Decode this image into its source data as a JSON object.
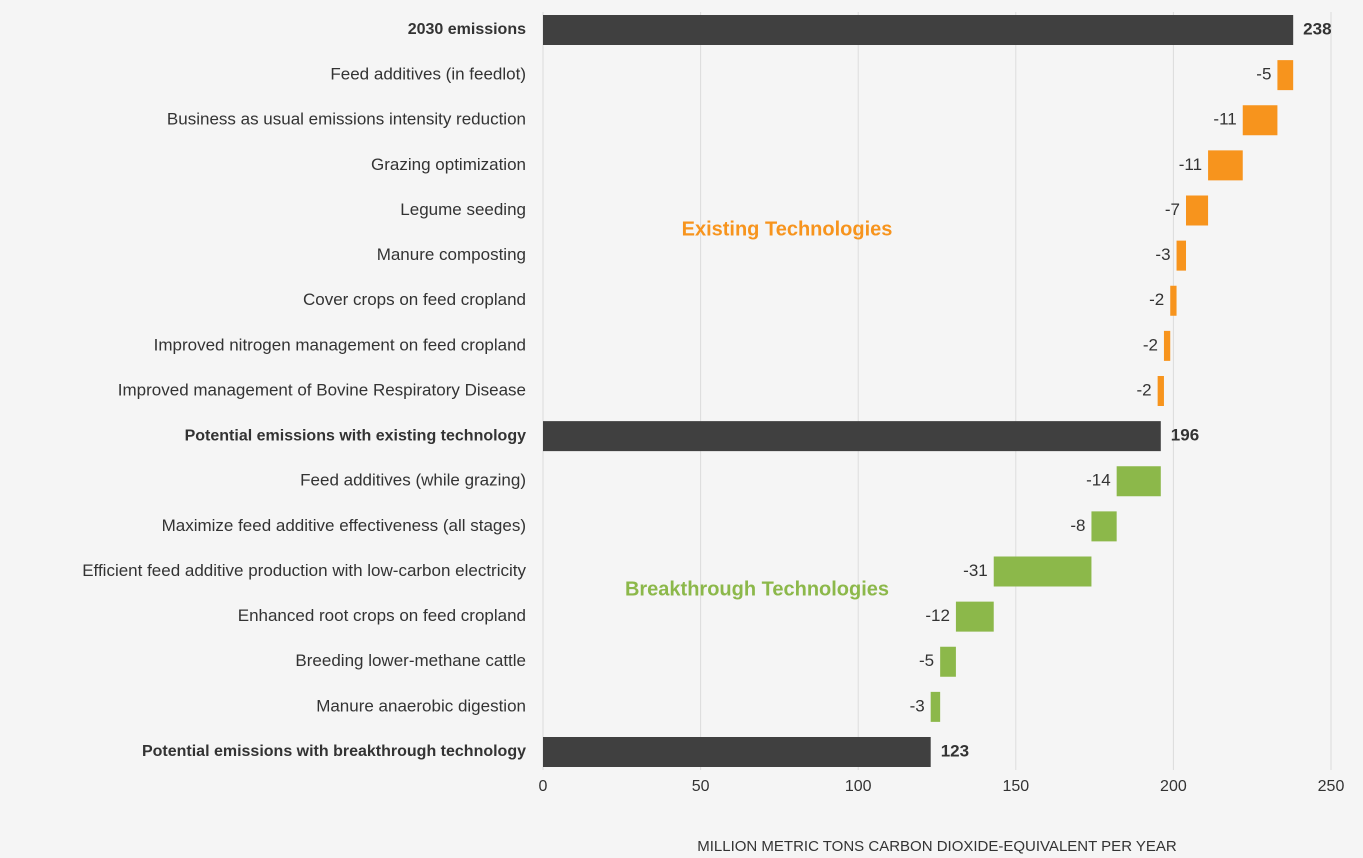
{
  "chart_data": {
    "type": "waterfall",
    "orientation": "horizontal",
    "categories": [
      "2030 emissions",
      "Feed additives (in feedlot)",
      "Business as usual emissions intensity reduction",
      "Grazing optimization",
      "Legume seeding",
      "Manure composting",
      "Cover crops on feed cropland",
      "Improved nitrogen management on feed cropland",
      "Improved management of Bovine Respiratory Disease",
      "Potential emissions with existing technology",
      "Feed additives (while grazing)",
      "Maximize feed additive effectiveness (all stages)",
      "Efficient feed additive production with low-carbon electricity",
      "Enhanced root crops on feed cropland",
      "Breeding lower-methane cattle",
      "Manure anaerobic digestion",
      "Potential emissions with breakthrough technology"
    ],
    "values": [
      238,
      -5,
      -11,
      -11,
      -7,
      -3,
      -2,
      -2,
      -2,
      196,
      -14,
      -8,
      -31,
      -12,
      -5,
      -3,
      123
    ],
    "measure": [
      "total",
      "relative",
      "relative",
      "relative",
      "relative",
      "relative",
      "relative",
      "relative",
      "relative",
      "total",
      "relative",
      "relative",
      "relative",
      "relative",
      "relative",
      "relative",
      "total"
    ],
    "colors": [
      "#404040",
      "#f7941d",
      "#f7941d",
      "#f7941d",
      "#f7941d",
      "#f7941d",
      "#f7941d",
      "#f7941d",
      "#f7941d",
      "#404040",
      "#8cb84a",
      "#8cb84a",
      "#8cb84a",
      "#8cb84a",
      "#8cb84a",
      "#8cb84a",
      "#404040"
    ],
    "xlim": [
      0,
      250
    ],
    "xticks": [
      0,
      50,
      100,
      150,
      200,
      250
    ],
    "xlabel": "MILLION METRIC TONS CARBON DIOXIDE-EQUIVALENT PER YEAR",
    "grid": true,
    "annotations": [
      {
        "text": "Existing Technologies",
        "color": "#f7941d"
      },
      {
        "text": "Breakthrough Technologies",
        "color": "#8cb84a"
      }
    ]
  }
}
